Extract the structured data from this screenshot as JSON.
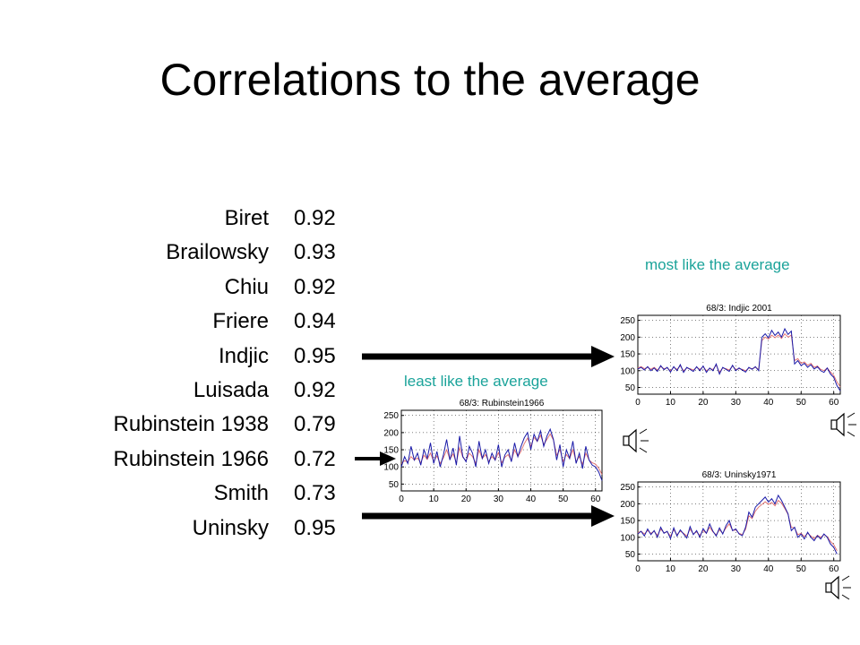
{
  "title": "Correlations to the average",
  "rows": [
    {
      "name": "Biret",
      "value": "0.92"
    },
    {
      "name": "Brailowsky",
      "value": "0.93"
    },
    {
      "name": "Chiu",
      "value": "0.92"
    },
    {
      "name": "Friere",
      "value": "0.94"
    },
    {
      "name": "Indjic",
      "value": "0.95"
    },
    {
      "name": "Luisada",
      "value": "0.92"
    },
    {
      "name": "Rubinstein 1938",
      "value": "0.79"
    },
    {
      "name": "Rubinstein 1966",
      "value": "0.72"
    },
    {
      "name": "Smith",
      "value": "0.73"
    },
    {
      "name": "Uninsky",
      "value": "0.95"
    }
  ],
  "notes": {
    "most": "most like the average",
    "least": "least like the average"
  },
  "colors": {
    "accent": "#1ba39a",
    "performance": "#1a1aa8",
    "average": "#e06a6a"
  },
  "chart_data": [
    {
      "type": "line",
      "title": "68/3: Indjic 2001",
      "x_ticks": [
        0,
        10,
        20,
        30,
        40,
        50,
        60
      ],
      "y_ticks": [
        50,
        100,
        150,
        200,
        250
      ],
      "xlim": [
        0,
        62
      ],
      "ylim": [
        30,
        265
      ],
      "series": [
        {
          "color": "#1a1aa8",
          "values": [
            105,
            110,
            102,
            112,
            100,
            108,
            98,
            115,
            103,
            110,
            96,
            112,
            100,
            118,
            95,
            110,
            104,
            98,
            112,
            100,
            114,
            95,
            108,
            100,
            120,
            90,
            110,
            104,
            98,
            116,
            100,
            108,
            102,
            96,
            110,
            104,
            112,
            100,
            200,
            210,
            198,
            220,
            205,
            215,
            200,
            225,
            208,
            218,
            120,
            130,
            115,
            122,
            110,
            118,
            105,
            112,
            100,
            95,
            108,
            90,
            80,
            55,
            40
          ]
        },
        {
          "color": "#e06a6a",
          "values": [
            108,
            112,
            106,
            110,
            104,
            110,
            102,
            112,
            106,
            108,
            100,
            110,
            104,
            114,
            100,
            108,
            106,
            102,
            110,
            104,
            112,
            100,
            106,
            104,
            116,
            96,
            108,
            106,
            102,
            114,
            104,
            106,
            104,
            100,
            108,
            106,
            110,
            104,
            190,
            200,
            194,
            206,
            198,
            206,
            196,
            210,
            200,
            206,
            130,
            136,
            122,
            126,
            116,
            122,
            110,
            114,
            104,
            100,
            108,
            96,
            86,
            66,
            52
          ]
        }
      ]
    },
    {
      "type": "line",
      "title": "68/3: Rubinstein1966",
      "x_ticks": [
        0,
        10,
        20,
        30,
        40,
        50,
        60
      ],
      "y_ticks": [
        50,
        100,
        150,
        200,
        250
      ],
      "xlim": [
        0,
        62
      ],
      "ylim": [
        30,
        265
      ],
      "series": [
        {
          "color": "#1a1aa8",
          "values": [
            100,
            130,
            110,
            160,
            120,
            140,
            105,
            150,
            125,
            170,
            110,
            145,
            100,
            135,
            180,
            120,
            155,
            105,
            190,
            130,
            115,
            160,
            140,
            100,
            175,
            125,
            150,
            110,
            140,
            120,
            165,
            100,
            135,
            150,
            115,
            170,
            130,
            160,
            185,
            200,
            150,
            195,
            175,
            205,
            160,
            190,
            210,
            180,
            120,
            165,
            100,
            150,
            125,
            175,
            110,
            140,
            95,
            160,
            120,
            105,
            100,
            85,
            60
          ]
        },
        {
          "color": "#e06a6a",
          "values": [
            110,
            118,
            114,
            130,
            120,
            126,
            112,
            134,
            122,
            140,
            116,
            132,
            110,
            126,
            150,
            122,
            138,
            112,
            156,
            128,
            118,
            140,
            130,
            110,
            150,
            124,
            136,
            116,
            130,
            120,
            142,
            112,
            128,
            136,
            118,
            150,
            130,
            146,
            168,
            184,
            160,
            186,
            174,
            192,
            166,
            180,
            196,
            178,
            134,
            150,
            116,
            136,
            124,
            150,
            116,
            130,
            108,
            140,
            120,
            112,
            108,
            96,
            78
          ]
        }
      ]
    },
    {
      "type": "line",
      "title": "68/3: Uninsky1971",
      "x_ticks": [
        0,
        10,
        20,
        30,
        40,
        50,
        60
      ],
      "y_ticks": [
        50,
        100,
        150,
        200,
        250
      ],
      "xlim": [
        0,
        62
      ],
      "ylim": [
        30,
        265
      ],
      "series": [
        {
          "color": "#1a1aa8",
          "values": [
            110,
            118,
            104,
            125,
            108,
            120,
            100,
            130,
            112,
            118,
            96,
            128,
            104,
            122,
            110,
            98,
            132,
            108,
            120,
            100,
            126,
            112,
            140,
            118,
            104,
            128,
            110,
            135,
            150,
            120,
            125,
            110,
            105,
            130,
            175,
            160,
            190,
            200,
            210,
            220,
            205,
            215,
            200,
            225,
            210,
            190,
            170,
            120,
            130,
            100,
            110,
            95,
            115,
            100,
            90,
            105,
            95,
            110,
            100,
            80,
            70,
            50
          ]
        },
        {
          "color": "#e06a6a",
          "values": [
            114,
            118,
            110,
            120,
            112,
            118,
            106,
            124,
            114,
            116,
            104,
            122,
            108,
            118,
            112,
            104,
            124,
            110,
            116,
            106,
            120,
            112,
            130,
            116,
            108,
            122,
            112,
            128,
            140,
            120,
            122,
            112,
            108,
            124,
            164,
            156,
            178,
            190,
            198,
            206,
            198,
            204,
            194,
            210,
            202,
            186,
            168,
            130,
            128,
            108,
            112,
            102,
            112,
            104,
            96,
            106,
            100,
            108,
            102,
            88,
            78,
            60
          ]
        }
      ]
    }
  ]
}
